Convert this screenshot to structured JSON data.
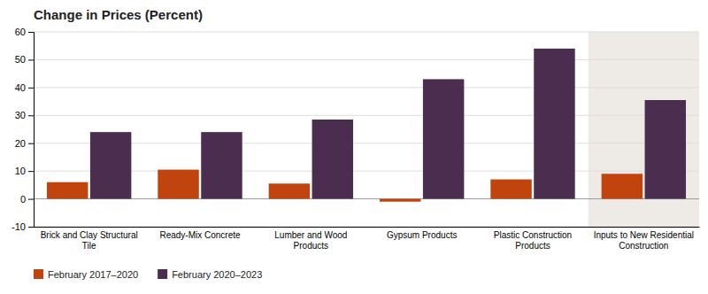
{
  "chart_data": {
    "type": "bar",
    "title": "Change in Prices (Percent)",
    "categories": [
      "Brick and Clay Structural\nTile",
      "Ready-Mix Concrete",
      "Lumber and Wood\nProducts",
      "Gypsum Products",
      "Plastic Construction\nProducts",
      "Inputs to New Residential\nConstruction"
    ],
    "series": [
      {
        "name": "February 2017–2020",
        "color": "#C1440E",
        "values": [
          6,
          10.5,
          5.5,
          -1,
          7,
          9
        ]
      },
      {
        "name": "February 2020–2023",
        "color": "#4B2D4F",
        "values": [
          24,
          24,
          28.5,
          43,
          54,
          35.5
        ]
      }
    ],
    "ylim": [
      -10,
      60
    ],
    "yticks": [
      -10,
      0,
      10,
      20,
      30,
      40,
      50,
      60
    ],
    "grid": true,
    "legend": "lower left"
  }
}
